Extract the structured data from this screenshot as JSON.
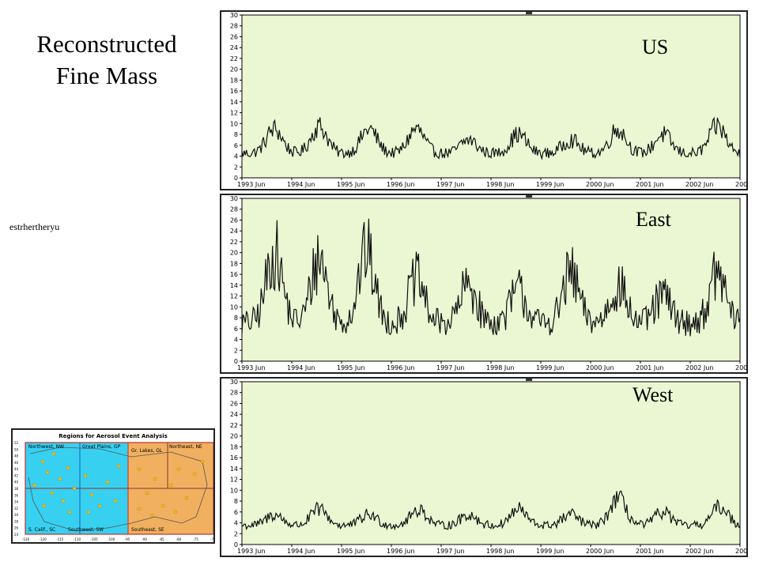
{
  "slide": {
    "title_line1": "Reconstructed",
    "title_line2": "Fine Mass",
    "stray_text": "estrhertheryu"
  },
  "colors": {
    "plot_bg": "#eaf7d2",
    "line": "#111111",
    "map_west": "#38d0f0",
    "map_east": "#f0b060",
    "map_site": "#f0c020"
  },
  "chart_data": [
    {
      "type": "line",
      "label": "US",
      "xlabels": [
        "1993 Jun",
        "1994 Jun",
        "1995 Jun",
        "1996 Jun",
        "1997 Jun",
        "1998 Jun",
        "1999 Jun",
        "2000 Jun",
        "2001 Jun",
        "2002 Jun",
        "200"
      ],
      "ylim": [
        0,
        30
      ],
      "yticks": [
        0,
        2,
        4,
        6,
        8,
        10,
        12,
        14,
        16,
        18,
        20,
        22,
        24,
        26,
        28,
        30
      ],
      "baseline": 4.5,
      "seasonal_peaks": [
        {
          "t": 0.65,
          "y": 9.0
        },
        {
          "t": 1.55,
          "y": 9.5
        },
        {
          "t": 2.55,
          "y": 9.0
        },
        {
          "t": 3.5,
          "y": 9.0
        },
        {
          "t": 4.55,
          "y": 7.0
        },
        {
          "t": 5.55,
          "y": 8.0
        },
        {
          "t": 6.6,
          "y": 7.0
        },
        {
          "t": 7.55,
          "y": 9.0
        },
        {
          "t": 8.45,
          "y": 8.0
        },
        {
          "t": 9.55,
          "y": 9.5
        }
      ],
      "grid": false
    },
    {
      "type": "line",
      "label": "East",
      "xlabels": [
        "1993 Jun",
        "1994 Jun",
        "1995 Jun",
        "1996 Jun",
        "1997 Jun",
        "1998 Jun",
        "1999 Jun",
        "2000 Jun",
        "2001 Jun",
        "2002 Jun",
        "200"
      ],
      "ylim": [
        0,
        30
      ],
      "yticks": [
        0,
        2,
        4,
        6,
        8,
        10,
        12,
        14,
        16,
        18,
        20,
        22,
        24,
        26,
        28,
        30
      ],
      "baseline": 7.0,
      "seasonal_peaks": [
        {
          "t": 0.65,
          "y": 20.0
        },
        {
          "t": 1.55,
          "y": 19.0
        },
        {
          "t": 2.5,
          "y": 20.0
        },
        {
          "t": 3.5,
          "y": 15.0
        },
        {
          "t": 4.55,
          "y": 14.0
        },
        {
          "t": 5.55,
          "y": 13.0
        },
        {
          "t": 6.6,
          "y": 16.0
        },
        {
          "t": 7.55,
          "y": 14.0
        },
        {
          "t": 8.45,
          "y": 12.0
        },
        {
          "t": 9.55,
          "y": 16.0
        }
      ],
      "grid": false
    },
    {
      "type": "line",
      "label": "West",
      "xlabels": [
        "1993 Jun",
        "1994 Jun",
        "1995 Jun",
        "1996 Jun",
        "1997 Jun",
        "1998 Jun",
        "1999 Jun",
        "2000 Jun",
        "2001 Jun",
        "2002 Jun",
        "200"
      ],
      "ylim": [
        0,
        30
      ],
      "yticks": [
        0,
        2,
        4,
        6,
        8,
        10,
        12,
        14,
        16,
        18,
        20,
        22,
        24,
        26,
        28,
        30
      ],
      "baseline": 3.5,
      "seasonal_peaks": [
        {
          "t": 0.65,
          "y": 5.5
        },
        {
          "t": 1.55,
          "y": 6.5
        },
        {
          "t": 2.55,
          "y": 5.5
        },
        {
          "t": 3.55,
          "y": 6.5
        },
        {
          "t": 4.55,
          "y": 5.5
        },
        {
          "t": 5.55,
          "y": 6.5
        },
        {
          "t": 6.6,
          "y": 5.5
        },
        {
          "t": 7.55,
          "y": 8.5
        },
        {
          "t": 8.45,
          "y": 6.0
        },
        {
          "t": 9.6,
          "y": 7.0
        }
      ],
      "grid": false
    }
  ],
  "map": {
    "title": "Regions for Aerosol Event Analysis",
    "regions": [
      {
        "name": "Northwest, NW",
        "side": "west"
      },
      {
        "name": "Great Plains, GP",
        "side": "west"
      },
      {
        "name": "Gr. Lakes, GL",
        "side": "east"
      },
      {
        "name": "Northeast, NE",
        "side": "east"
      },
      {
        "name": "S. Calif., SC",
        "side": "west"
      },
      {
        "name": "Southwest, SW",
        "side": "west"
      },
      {
        "name": "Southeast, SE",
        "side": "east"
      }
    ],
    "lat_ticks": [
      "52",
      "50",
      "48",
      "46",
      "44",
      "42",
      "40",
      "38",
      "36",
      "34",
      "32",
      "30",
      "28",
      "26",
      "24"
    ],
    "lon_ticks": [
      "-126",
      "-120",
      "-115",
      "-110",
      "-105",
      "-100",
      "-95",
      "-90",
      "-85",
      "-80",
      "-75",
      "-70"
    ]
  }
}
